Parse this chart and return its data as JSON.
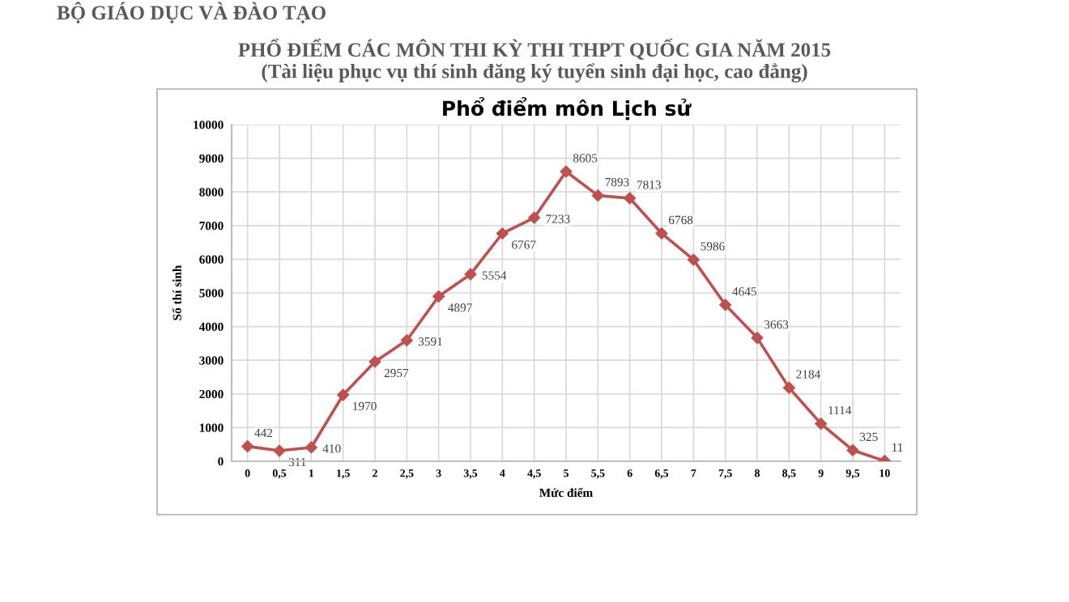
{
  "chart_data": {
    "type": "line",
    "title": "Phổ điểm môn Lịch sử",
    "subtitle": "PHỔ ĐIỂM CÁC MÔN THI KỲ THI THPT QUỐC GIA NĂM 2015",
    "annotations": [
      "BỘ GIÁO DỤC VÀ ĐÀO TẠO",
      "(Tài liệu phục vụ thí sinh đăng ký tuyển sinh đại học, cao đẳng)"
    ],
    "xlabel": "Mức điểm",
    "ylabel": "Số thí sinh",
    "categories": [
      "0",
      "0,5",
      "1",
      "1,5",
      "2",
      "2,5",
      "3",
      "3,5",
      "4",
      "4,5",
      "5",
      "5,5",
      "6",
      "6,5",
      "7",
      "7,5",
      "8",
      "8,5",
      "9",
      "9,5",
      "10"
    ],
    "series": [
      {
        "color": "#c0504d",
        "values": [
          442,
          311,
          410,
          1970,
          2957,
          3591,
          4897,
          5554,
          6767,
          7233,
          8605,
          7893,
          7813,
          6768,
          5986,
          4645,
          3663,
          2184,
          1114,
          325,
          11
        ]
      }
    ],
    "ylim": [
      0,
      10000
    ],
    "yticks": [
      0,
      1000,
      2000,
      3000,
      4000,
      5000,
      6000,
      7000,
      8000,
      9000,
      10000
    ],
    "grid": true,
    "marker": "diamond",
    "line_style": "solid",
    "data_labels": true
  }
}
